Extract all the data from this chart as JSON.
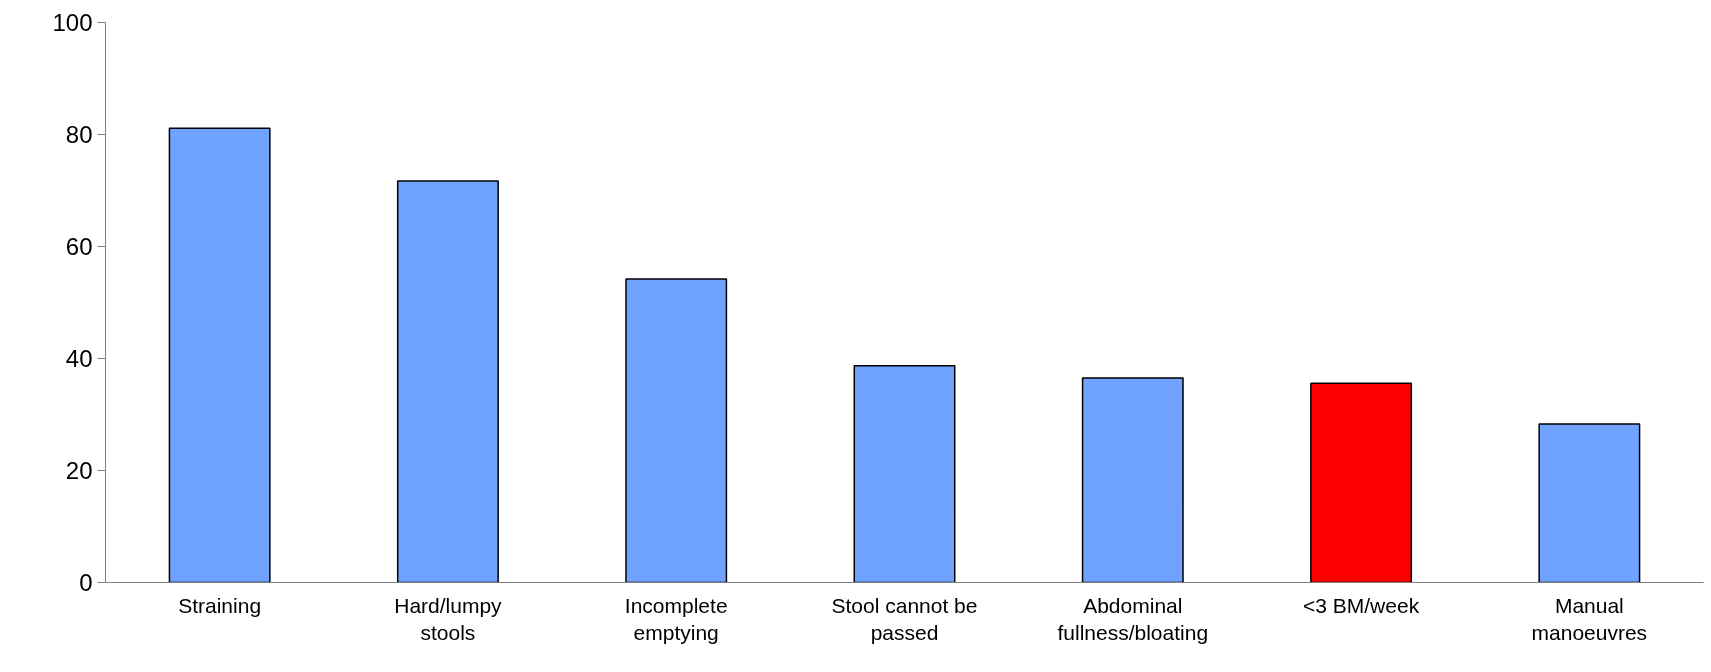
{
  "chart_data": {
    "type": "bar",
    "categories": [
      "Straining",
      "Hard/lumpy stools",
      "Incomplete emptying",
      "Stool cannot be passed",
      "Abdominal fullness/bloating",
      "<3 BM/week",
      "Manual manoeuvres"
    ],
    "values": [
      81.1,
      71.7,
      54.2,
      38.7,
      36.5,
      35.6,
      28.3
    ],
    "colors": [
      "#6fa3ff",
      "#6fa3ff",
      "#6fa3ff",
      "#6fa3ff",
      "#6fa3ff",
      "#ff0000",
      "#6fa3ff"
    ],
    "ylim": [
      0,
      100
    ],
    "yticks": [
      0,
      20,
      40,
      60,
      80,
      100
    ],
    "grid": false
  }
}
